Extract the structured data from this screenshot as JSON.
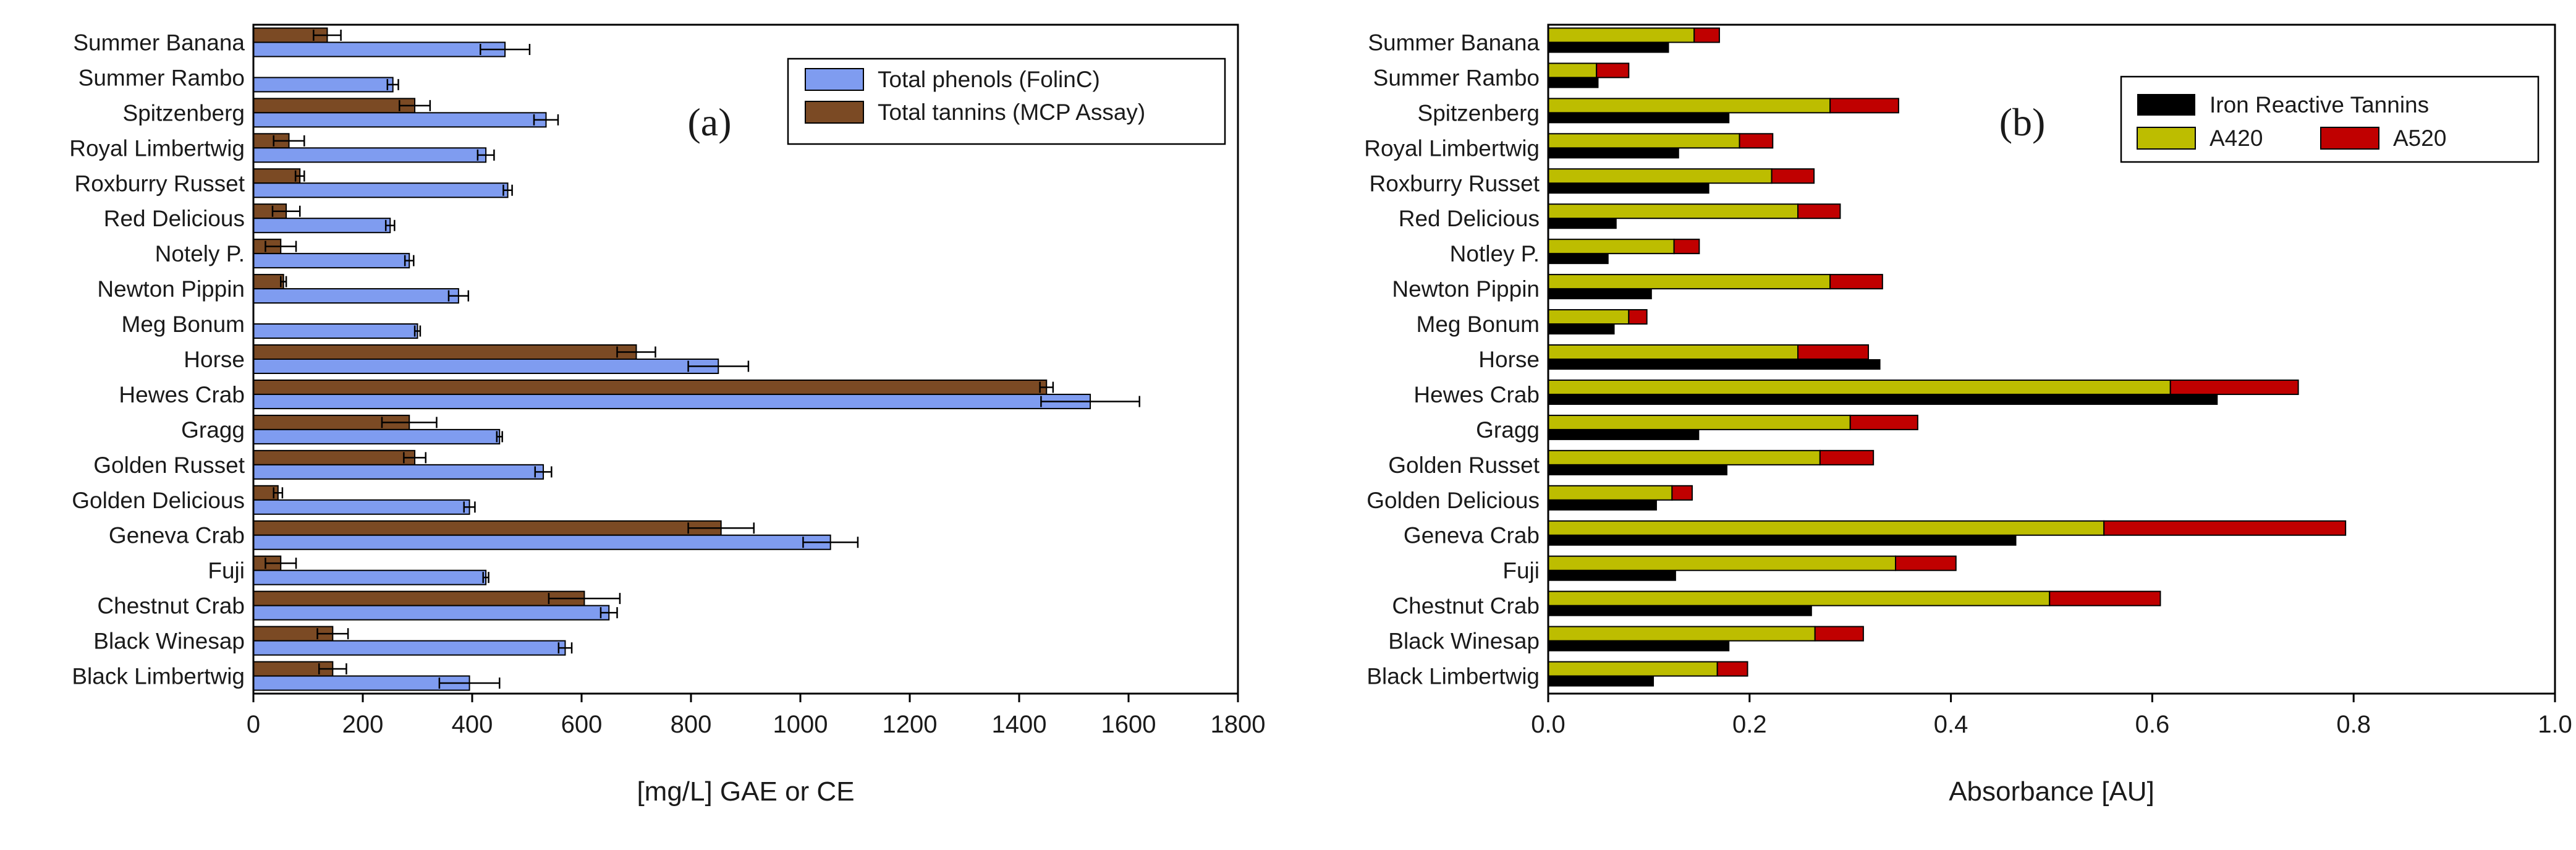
{
  "chart_data": [
    {
      "panel": "(a)",
      "type": "bar",
      "orientation": "horizontal",
      "categories": [
        "Summer Banana",
        "Summer Rambo",
        "Spitzenberg",
        "Royal Limbertwig",
        "Roxburry Russet",
        "Red Delicious",
        "Notely P.",
        "Newton Pippin",
        "Meg Bonum",
        "Horse",
        "Hewes Crab",
        "Gragg",
        "Golden Russet",
        "Golden Delicious",
        "Geneva Crab",
        "Fuji",
        "Chestnut Crab",
        "Black Winesap",
        "Black Limbertwig"
      ],
      "series": [
        {
          "name": "Total phenols (FolinC)",
          "color": "#7f9cf0",
          "values": [
            460,
            255,
            535,
            425,
            465,
            250,
            285,
            375,
            300,
            850,
            1530,
            450,
            530,
            395,
            1055,
            425,
            650,
            570,
            395
          ],
          "errors": [
            45,
            10,
            22,
            15,
            8,
            8,
            8,
            18,
            5,
            55,
            90,
            5,
            15,
            10,
            50,
            5,
            15,
            12,
            55
          ]
        },
        {
          "name": "Total tannins (MCP Assay)",
          "color": "#7b4a24",
          "values": [
            135,
            0,
            295,
            65,
            85,
            60,
            50,
            55,
            0,
            700,
            1450,
            285,
            295,
            45,
            855,
            50,
            605,
            145,
            145
          ],
          "errors": [
            25,
            0,
            28,
            28,
            8,
            25,
            28,
            5,
            0,
            35,
            12,
            50,
            20,
            8,
            60,
            28,
            65,
            28,
            25
          ]
        }
      ],
      "xlabel": "[mg/L] GAE or CE",
      "xlim": [
        0,
        1800
      ],
      "xticks": [
        0,
        200,
        400,
        600,
        800,
        1000,
        1200,
        1400,
        1600,
        1800
      ],
      "legend_position": "top-right"
    },
    {
      "panel": "(b)",
      "type": "bar",
      "orientation": "horizontal",
      "stacked_series": [
        "A420",
        "A520"
      ],
      "categories": [
        "Summer Banana",
        "Summer Rambo",
        "Spitzenberg",
        "Royal Limbertwig",
        "Roxburry Russet",
        "Red Delicious",
        "Notley P.",
        "Newton Pippin",
        "Meg Bonum",
        "Horse",
        "Hewes Crab",
        "Gragg",
        "Golden Russet",
        "Golden Delicious",
        "Geneva Crab",
        "Fuji",
        "Chestnut Crab",
        "Black Winesap",
        "Black Limbertwig"
      ],
      "series": [
        {
          "name": "Iron Reactive Tannins",
          "color": "#000000",
          "values": [
            0.12,
            0.05,
            0.18,
            0.13,
            0.16,
            0.068,
            0.06,
            0.103,
            0.066,
            0.33,
            0.665,
            0.15,
            0.178,
            0.108,
            0.465,
            0.127,
            0.262,
            0.18,
            0.105
          ]
        },
        {
          "name": "A420",
          "color": "#bdbd00",
          "values": [
            0.145,
            0.048,
            0.28,
            0.19,
            0.222,
            0.248,
            0.125,
            0.28,
            0.08,
            0.248,
            0.618,
            0.3,
            0.27,
            0.123,
            0.552,
            0.345,
            0.498,
            0.265,
            0.168
          ]
        },
        {
          "name": "A520",
          "color": "#c00000",
          "values": [
            0.025,
            0.032,
            0.068,
            0.033,
            0.042,
            0.042,
            0.025,
            0.052,
            0.018,
            0.07,
            0.127,
            0.067,
            0.053,
            0.02,
            0.24,
            0.06,
            0.11,
            0.048,
            0.03
          ]
        }
      ],
      "xlabel": "Absorbance [AU]",
      "xlim": [
        0,
        1.0
      ],
      "xticks": [
        "0.0",
        "0.2",
        "0.4",
        "0.6",
        "0.8",
        "1.0"
      ],
      "legend_position": "top-right"
    }
  ]
}
